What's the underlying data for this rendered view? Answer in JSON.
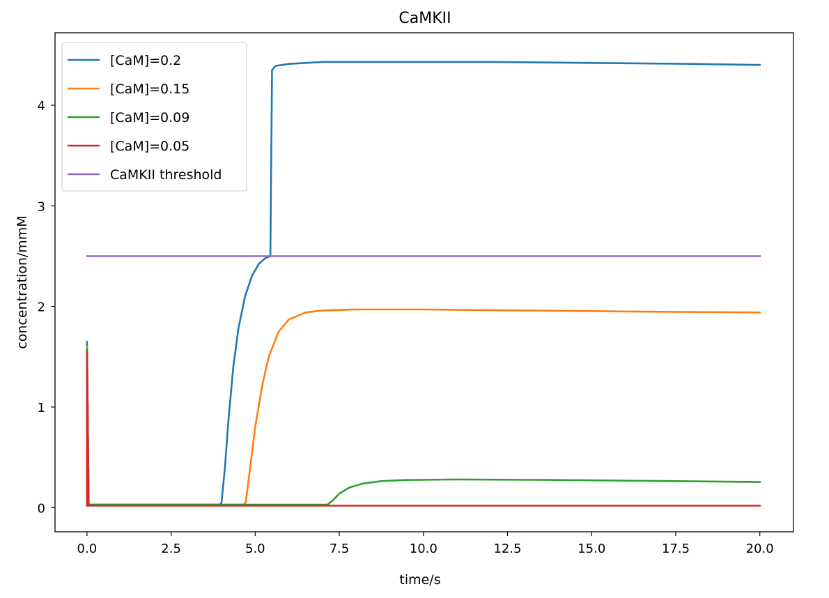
{
  "chart_data": {
    "type": "line",
    "title": "CaMKII",
    "xlabel": "time/s",
    "ylabel": "concentration/mmM",
    "xlim": [
      -0.95,
      21.0
    ],
    "ylim": [
      -0.24,
      4.72
    ],
    "xticks": [
      "0.0",
      "2.5",
      "5.0",
      "7.5",
      "10.0",
      "12.5",
      "15.0",
      "17.5",
      "20.0"
    ],
    "xtick_values": [
      0,
      2.5,
      5,
      7.5,
      10,
      12.5,
      15,
      17.5,
      20
    ],
    "yticks": [
      "0",
      "1",
      "2",
      "3",
      "4"
    ],
    "ytick_values": [
      0,
      1,
      2,
      3,
      4
    ],
    "grid": false,
    "legend_position": "top-left",
    "series": [
      {
        "name": "[CaM]=0.2",
        "color": "#1f77b4",
        "points": [
          [
            0,
            0.02
          ],
          [
            0,
            1.65
          ],
          [
            0.05,
            0.03
          ],
          [
            3.95,
            0.03
          ],
          [
            4.0,
            0.05
          ],
          [
            4.1,
            0.4
          ],
          [
            4.2,
            0.85
          ],
          [
            4.35,
            1.4
          ],
          [
            4.5,
            1.78
          ],
          [
            4.7,
            2.1
          ],
          [
            4.9,
            2.3
          ],
          [
            5.1,
            2.42
          ],
          [
            5.3,
            2.48
          ],
          [
            5.45,
            2.5
          ],
          [
            5.5,
            4.35
          ],
          [
            5.6,
            4.39
          ],
          [
            6.0,
            4.41
          ],
          [
            7.0,
            4.43
          ],
          [
            9.0,
            4.43
          ],
          [
            12.0,
            4.43
          ],
          [
            15.0,
            4.42
          ],
          [
            18.0,
            4.41
          ],
          [
            20.0,
            4.4
          ]
        ]
      },
      {
        "name": "[CaM]=0.15",
        "color": "#ff7f0e",
        "points": [
          [
            0,
            0.02
          ],
          [
            0,
            1.6
          ],
          [
            0.05,
            0.03
          ],
          [
            4.65,
            0.03
          ],
          [
            4.72,
            0.05
          ],
          [
            4.85,
            0.4
          ],
          [
            5.0,
            0.8
          ],
          [
            5.2,
            1.2
          ],
          [
            5.4,
            1.5
          ],
          [
            5.7,
            1.75
          ],
          [
            6.0,
            1.87
          ],
          [
            6.5,
            1.94
          ],
          [
            7.0,
            1.96
          ],
          [
            8.0,
            1.97
          ],
          [
            10.0,
            1.97
          ],
          [
            13.0,
            1.96
          ],
          [
            16.0,
            1.95
          ],
          [
            20.0,
            1.94
          ]
        ]
      },
      {
        "name": "[CaM]=0.09",
        "color": "#2ca02c",
        "points": [
          [
            0,
            0.02
          ],
          [
            0,
            1.58
          ],
          [
            0.05,
            0.03
          ],
          [
            7.15,
            0.03
          ],
          [
            7.3,
            0.07
          ],
          [
            7.5,
            0.14
          ],
          [
            7.8,
            0.2
          ],
          [
            8.2,
            0.24
          ],
          [
            8.8,
            0.265
          ],
          [
            9.5,
            0.275
          ],
          [
            11.0,
            0.28
          ],
          [
            14.0,
            0.275
          ],
          [
            17.0,
            0.265
          ],
          [
            20.0,
            0.255
          ]
        ]
      },
      {
        "name": "[CaM]=0.05",
        "color": "#d62728",
        "points": [
          [
            0,
            0.02
          ],
          [
            0,
            1.55
          ],
          [
            0.05,
            0.02
          ],
          [
            5.0,
            0.02
          ],
          [
            10.0,
            0.02
          ],
          [
            15.0,
            0.02
          ],
          [
            20.0,
            0.02
          ]
        ]
      },
      {
        "name": "CaMKII threshold",
        "color": "#9467bd",
        "points": [
          [
            0,
            2.5
          ],
          [
            20.0,
            2.5
          ]
        ]
      }
    ]
  }
}
